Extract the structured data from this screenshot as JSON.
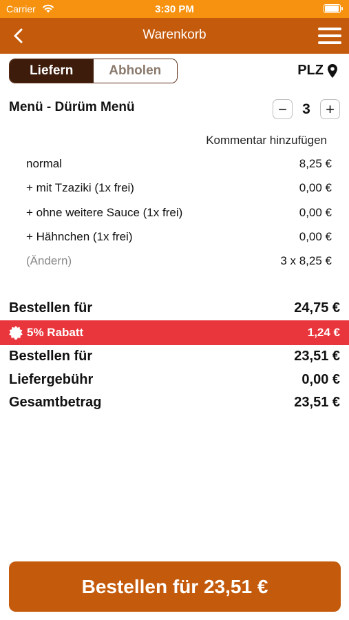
{
  "status_bar": {
    "carrier": "Carrier",
    "time": "3:30 PM",
    "battery_level": 1.0,
    "icons": [
      "wifi-icon",
      "battery-icon"
    ]
  },
  "nav": {
    "title": "Warenkorb",
    "icons": [
      "back-chevron-icon",
      "hamburger-menu-icon"
    ]
  },
  "delivery_mode": {
    "options": [
      "Liefern",
      "Abholen"
    ],
    "selected": "Liefern"
  },
  "plz": {
    "label": "PLZ",
    "icon": "location-pin-icon"
  },
  "cart_item": {
    "title": "Menü - Dürüm Menü",
    "quantity": "3",
    "decrement_label": "−",
    "increment_label": "+",
    "comment_link": "Kommentar hinzufügen",
    "options": [
      {
        "label": "normal",
        "price": "8,25 €"
      },
      {
        "label": "+ mit Tzaziki (1x frei)",
        "price": "0,00 €"
      },
      {
        "label": "+ ohne weitere Sauce (1x frei)",
        "price": "0,00 €"
      },
      {
        "label": "+ Hähnchen (1x frei)",
        "price": "0,00 €"
      }
    ],
    "change_link": "(Ändern)",
    "line_total": "3 x 8,25 €"
  },
  "summary": {
    "subtotal_label": "Bestellen für",
    "subtotal_value": "24,75 €",
    "discount_label": "5% Rabatt",
    "discount_value": "1,24 €",
    "discount_color": "#e8363c",
    "after_discount_label": "Bestellen für",
    "after_discount_value": "23,51 €",
    "delivery_fee_label": "Liefergebühr",
    "delivery_fee_value": "0,00 €",
    "total_label": "Gesamtbetrag",
    "total_value": "23,51 €"
  },
  "order_button": {
    "label": "Bestellen für 23,51 €"
  },
  "colors": {
    "status_bar": "#f6920f",
    "brand": "#c45a0c",
    "segment_active": "#3d1c0b"
  }
}
